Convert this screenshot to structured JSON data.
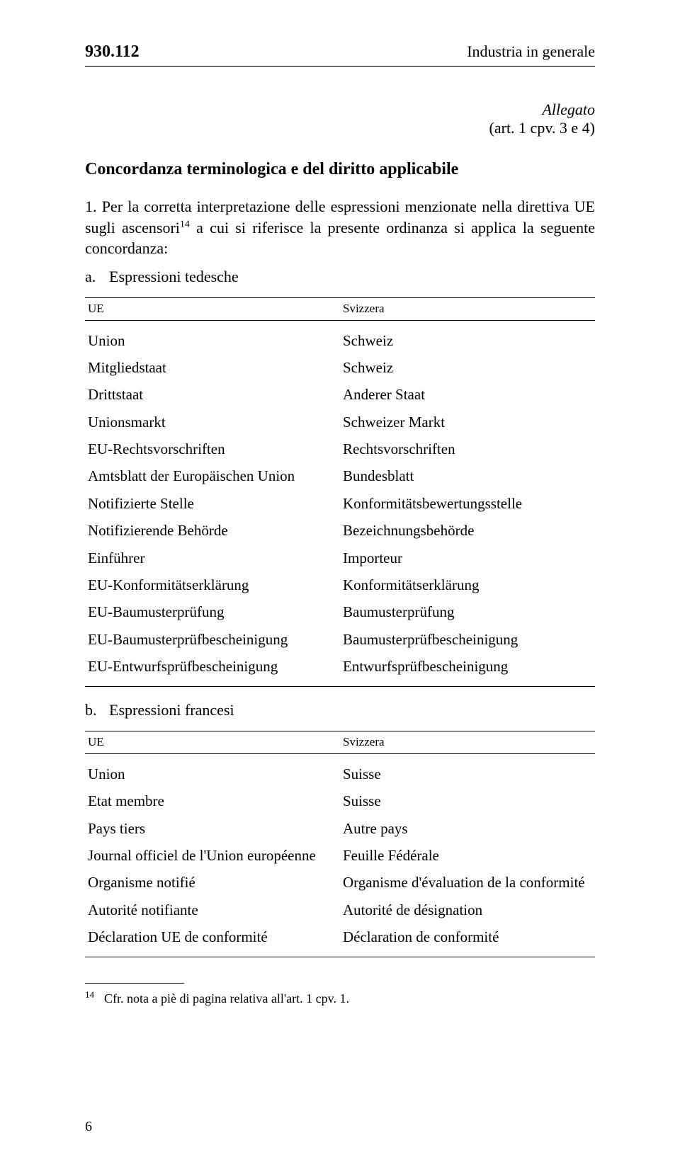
{
  "header": {
    "code": "930.112",
    "category": "Industria in generale"
  },
  "annex": {
    "label": "Allegato",
    "ref": "(art. 1 cpv. 3 e 4)"
  },
  "section": {
    "title": "Concordanza terminologica e del diritto applicabile",
    "intro_before_sup": "1. Per la corretta interpretazione delle espressioni menzionate nella direttiva UE sugli ascensori",
    "intro_sup": "14",
    "intro_after_sup": " a cui si riferisce la presente ordinanza si applica la seguente concordanza:",
    "item_a": "Espressioni tedesche",
    "item_b": "Espressioni francesi"
  },
  "table_a": {
    "head_left": "UE",
    "head_right": "Svizzera",
    "rows": [
      {
        "l": "Union",
        "r": "Schweiz"
      },
      {
        "l": "Mitgliedstaat",
        "r": "Schweiz"
      },
      {
        "l": "Drittstaat",
        "r": "Anderer Staat"
      },
      {
        "l": "Unionsmarkt",
        "r": "Schweizer Markt"
      },
      {
        "l": "EU-Rechtsvorschriften",
        "r": "Rechtsvorschriften"
      },
      {
        "l": "Amtsblatt der Europäischen Union",
        "r": "Bundesblatt"
      },
      {
        "l": "Notifizierte Stelle",
        "r": "Konformitätsbewertungsstelle"
      },
      {
        "l": "Notifizierende Behörde",
        "r": "Bezeichnungsbehörde"
      },
      {
        "l": "Einführer",
        "r": "Importeur"
      },
      {
        "l": "EU-Konformitätserklärung",
        "r": "Konformitätserklärung"
      },
      {
        "l": "EU-Baumusterprüfung",
        "r": "Baumusterprüfung"
      },
      {
        "l": "EU-Baumusterprüfbescheinigung",
        "r": "Baumusterprüfbescheinigung"
      },
      {
        "l": "EU-Entwurfsprüfbescheinigung",
        "r": "Entwurfsprüfbescheinigung"
      }
    ]
  },
  "table_b": {
    "head_left": "UE",
    "head_right": "Svizzera",
    "rows": [
      {
        "l": "Union",
        "r": "Suisse"
      },
      {
        "l": "Etat membre",
        "r": "Suisse"
      },
      {
        "l": "Pays tiers",
        "r": "Autre pays"
      },
      {
        "l": "Journal officiel de l'Union européenne",
        "r": "Feuille Fédérale"
      },
      {
        "l": "Organisme notifié",
        "r": "Organisme d'évaluation de la conformité"
      },
      {
        "l": "Autorité notifiante",
        "r": "Autorité de désignation"
      },
      {
        "l": "Déclaration UE de conformité",
        "r": "Déclaration de conformité"
      }
    ]
  },
  "footnote": {
    "num": "14",
    "text": "Cfr. nota a piè di pagina relativa all'art. 1 cpv. 1."
  },
  "page_number": "6"
}
